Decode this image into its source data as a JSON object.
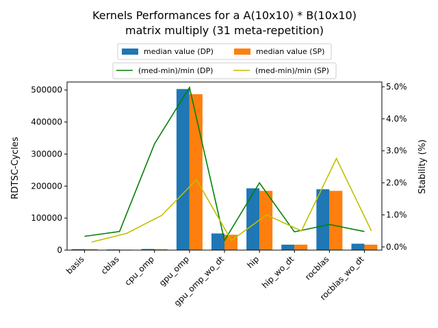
{
  "chart_data": {
    "type": "bar",
    "title_line1": "Kernels Performances for a A(10x10) * B(10x10)",
    "title_line2": "matrix multiply (31 meta-repetition)",
    "ylabel": "RDTSC-Cycles",
    "y2label": "Stability (%)",
    "categories": [
      "basis",
      "cblas",
      "cpu_omp",
      "gpu_omp",
      "gpu_omp_wo_dt",
      "hip",
      "hip_wo_dt",
      "rocblas",
      "rocblas_wo_dt"
    ],
    "ylim": [
      0,
      525000
    ],
    "y2lim": [
      -0.1,
      5.15
    ],
    "yticks": [
      0,
      100000,
      200000,
      300000,
      400000,
      500000
    ],
    "y2ticks": [
      0.0,
      1.0,
      2.0,
      3.0,
      4.0,
      5.0
    ],
    "y2tick_labels": [
      "0.0%",
      "1.0%",
      "2.0%",
      "3.0%",
      "4.0%",
      "5.0%"
    ],
    "legend": {
      "bars": [
        "median value (DP)",
        "median value (SP)"
      ],
      "lines": [
        "(med-min)/min (DP)",
        "(med-min)/min (SP)"
      ]
    },
    "colors": {
      "dp_bar": "#1f77b4",
      "sp_bar": "#ff7f0e",
      "dp_line": "#008000",
      "sp_line": "#bfbf00"
    },
    "series": [
      {
        "name": "median value (DP)",
        "kind": "bar",
        "values": [
          3000,
          2000,
          3500,
          503000,
          52000,
          193000,
          17000,
          190000,
          20000
        ]
      },
      {
        "name": "median value (SP)",
        "kind": "bar",
        "values": [
          3000,
          1500,
          3000,
          487000,
          48000,
          185000,
          17000,
          185000,
          17000
        ]
      },
      {
        "name": "(med-min)/min (DP)",
        "kind": "line",
        "axis": "y2",
        "values": [
          0.33,
          0.48,
          3.22,
          4.98,
          0.2,
          2.0,
          0.47,
          0.7,
          0.48
        ]
      },
      {
        "name": "(med-min)/min (SP)",
        "kind": "line",
        "axis": "y2",
        "start_index": 0.2,
        "x_offset": 0.2,
        "values": [
          0.15,
          0.42,
          0.98,
          2.1,
          0.2,
          1.0,
          0.5,
          2.76,
          0.5
        ]
      }
    ]
  }
}
